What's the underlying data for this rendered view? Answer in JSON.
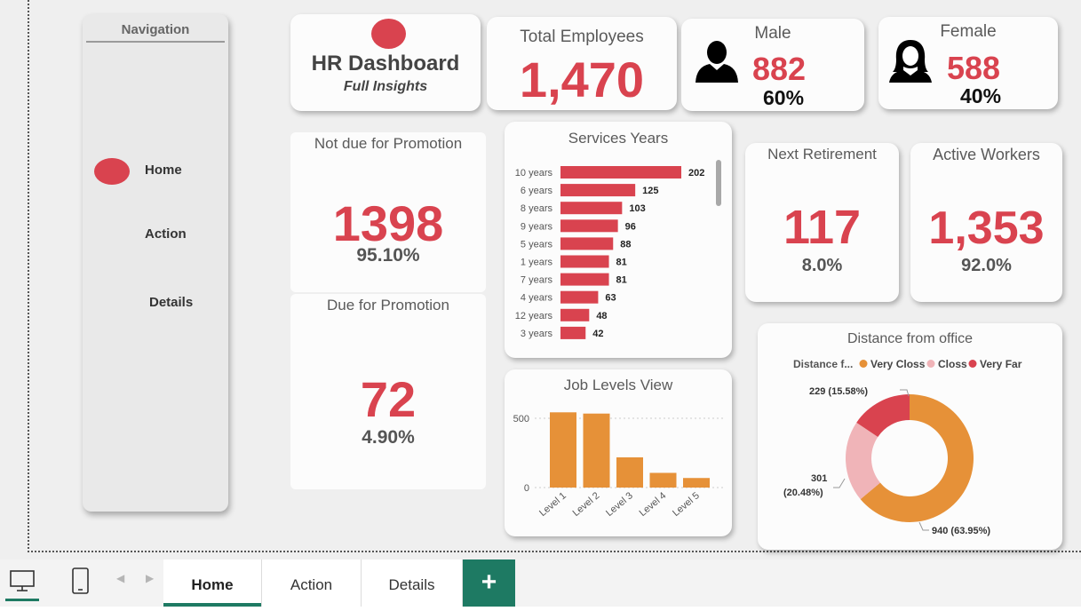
{
  "navigation": {
    "title": "Navigation",
    "items": [
      {
        "label": "Home"
      },
      {
        "label": "Action"
      },
      {
        "label": "Details"
      }
    ]
  },
  "header": {
    "title": "HR Dashboard",
    "subtitle": "Full Insights"
  },
  "kpis": {
    "total": {
      "label": "Total Employees",
      "value": "1,470"
    },
    "male": {
      "label": "Male",
      "value": "882",
      "pct": "60%"
    },
    "female": {
      "label": "Female",
      "value": "588",
      "pct": "40%"
    },
    "not_due": {
      "label": "Not due for Promotion",
      "value": "1398",
      "pct": "95.10%"
    },
    "due": {
      "label": "Due for Promotion",
      "value": "72",
      "pct": "4.90%"
    },
    "retirement": {
      "label": "Next Retirement",
      "value": "117",
      "pct": "8.0%"
    },
    "active": {
      "label": "Active Workers",
      "value": "1,353",
      "pct": "92.0%"
    }
  },
  "colors": {
    "accent_red": "#d9434f",
    "orange": "#e69138",
    "pink": "#f0b4b8",
    "teal": "#1e7a63"
  },
  "chart_data": [
    {
      "type": "bar",
      "orientation": "horizontal",
      "title": "Services Years",
      "categories": [
        "10 years",
        "6 years",
        "8 years",
        "9 years",
        "5 years",
        "1 years",
        "7 years",
        "4 years",
        "12 years",
        "3 years"
      ],
      "values": [
        202,
        125,
        103,
        96,
        88,
        81,
        81,
        63,
        48,
        42
      ],
      "xlim": [
        0,
        202
      ]
    },
    {
      "type": "bar",
      "title": "Job Levels View",
      "categories": [
        "Level 1",
        "Level 2",
        "Level 3",
        "Level 4",
        "Level 5"
      ],
      "values": [
        543,
        534,
        218,
        106,
        69
      ],
      "yticks": [
        "500",
        "0"
      ],
      "ylim": [
        0,
        600
      ]
    },
    {
      "type": "pie",
      "donut": true,
      "title": "Distance from office",
      "legend_title": "Distance f...",
      "categories": [
        "Very Closs",
        "Closs",
        "Very Far"
      ],
      "values": [
        940,
        301,
        229
      ],
      "labels": [
        "940 (63.95%)",
        "301 (20.48%)",
        "229 (15.58%)"
      ]
    }
  ],
  "tabs": [
    {
      "label": "Home"
    },
    {
      "label": "Action"
    },
    {
      "label": "Details"
    }
  ],
  "add_tab": "+"
}
